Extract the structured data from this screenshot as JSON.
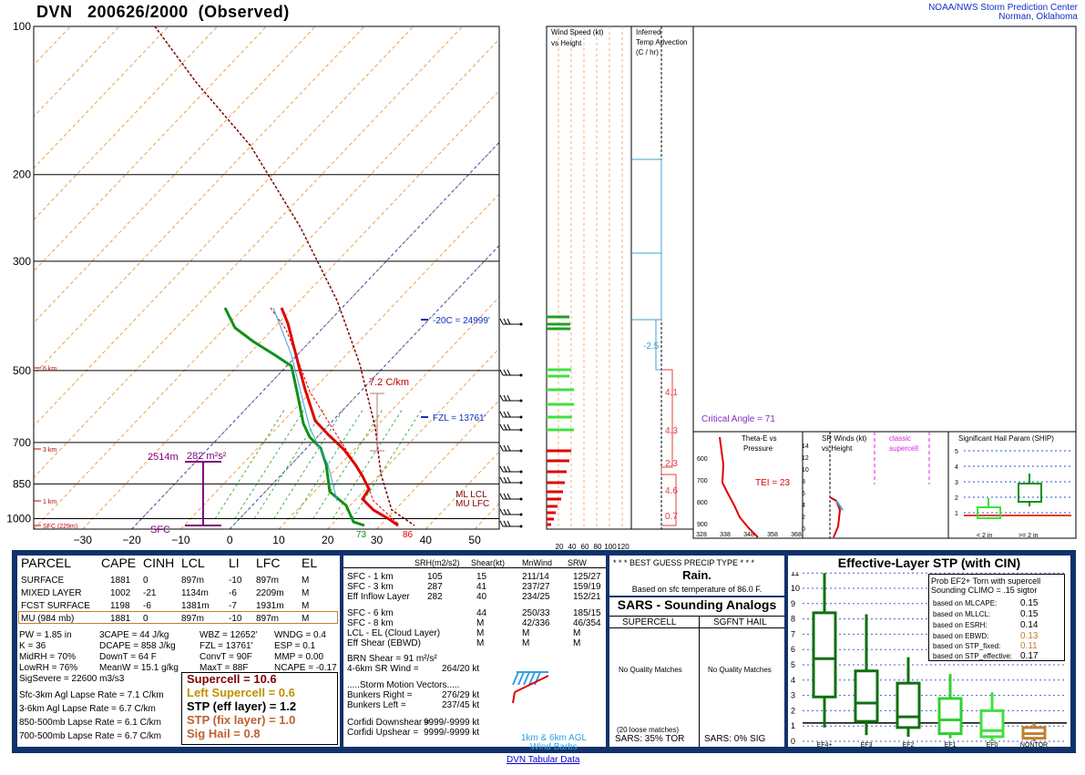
{
  "header": {
    "station": "DVN",
    "time": "200626/2000",
    "kind": "(Observed)",
    "org": "NOAA/NWS Storm Prediction Center",
    "place": "Norman, Oklahoma"
  },
  "skewt": {
    "pressure_ticks": [
      "100",
      "200",
      "300",
      "500",
      "700",
      "850",
      "1000"
    ],
    "temp_ticks": [
      "−30",
      "−20",
      "−10",
      "0",
      "10",
      "20",
      "30",
      "40",
      "50"
    ],
    "height_labels": [
      "6 km",
      "3 km",
      "1 km",
      "SFC (229m)"
    ],
    "annotations": {
      "m20c": "-20C = 24999'",
      "fzl": "FZL = 13761'",
      "lapse": "7.2 C/km",
      "depth": "2514m",
      "srh": "282 m²s²",
      "sfc": "SFC",
      "lcl": "ML LCL",
      "lfc": "MU LFC",
      "tsfc": "86",
      "tdsfc": "73"
    }
  },
  "wspd": {
    "title1": "Wind Speed (kt)",
    "title2": "vs Height",
    "ticks": [
      "20",
      "40",
      "60",
      "80",
      "100",
      "120"
    ]
  },
  "tadv": {
    "title1": "Inferred",
    "title2": "Temp Advection",
    "title3": "(C / hr)",
    "vals": [
      "-2.5",
      "4.1",
      "4.3",
      "2.3",
      "4.6",
      "0.7"
    ]
  },
  "crit": "Critical Angle = 71",
  "theta": {
    "t1": "Theta-E vs",
    "t2": "Pressure",
    "tei": "TEI = 23",
    "yticks": [
      "600",
      "700",
      "800",
      "900"
    ],
    "xticks": [
      "328",
      "338",
      "348",
      "358",
      "368"
    ]
  },
  "srw": {
    "t1": "SR Winds (kt)",
    "t2": "vs Height",
    "t3": "classic",
    "t4": "supercell",
    "yticks": [
      "14",
      "12",
      "10",
      "8",
      "6",
      "4",
      "2",
      "0"
    ]
  },
  "ship": {
    "title": "Significant Hail Param (SHIP)",
    "yticks": [
      "5",
      "4",
      "3",
      "2",
      "1"
    ],
    "x1": "< 2 in",
    "x2": ">= 2 in"
  },
  "parcel": {
    "headers": [
      "PARCEL",
      "CAPE",
      "CINH",
      "LCL",
      "LI",
      "LFC",
      "EL"
    ],
    "rows": [
      [
        "SURFACE",
        "1881",
        "0",
        "897m",
        "-10",
        "897m",
        "M"
      ],
      [
        "MIXED LAYER",
        "1002",
        "-21",
        "1134m",
        "-6",
        "2209m",
        "M"
      ],
      [
        "FCST SURFACE",
        "1198",
        "-6",
        "1381m",
        "-7",
        "1931m",
        "M"
      ],
      [
        "MU   (984 mb)",
        "1881",
        "0",
        "897m",
        "-10",
        "897m",
        "M"
      ]
    ],
    "indices": [
      [
        "PW = 1.85 in",
        "3CAPE = 44 J/kg",
        "WBZ = 12652'",
        "WNDG = 0.4"
      ],
      [
        "K = 36",
        "DCAPE = 858 J/kg",
        "FZL = 13761'",
        "ESP = 0.1"
      ],
      [
        "MidRH = 70%",
        "DownT = 64 F",
        "ConvT = 90F",
        "MMP = 0.00"
      ],
      [
        "LowRH = 76%",
        "MeanW = 15.1 g/kg",
        "MaxT = 88F",
        "NCAPE = -0.17"
      ]
    ],
    "sigsevere": "SigSevere = 22600 m3/s3",
    "lapse": [
      "Sfc-3km Agl Lapse Rate = 7.1 C/km",
      "3-6km Agl Lapse Rate = 6.7 C/km",
      "850-500mb Lapse Rate = 6.1 C/km",
      "700-500mb Lapse Rate = 6.7 C/km"
    ],
    "params": [
      "Supercell = 10.6",
      "Left Supercell = 0.6",
      "STP (eff layer) = 1.2",
      "STP (fix layer) = 1.0",
      "Sig Hail = 0.8"
    ]
  },
  "kin": {
    "headers": [
      "SRH(m2/s2)",
      "Shear(kt)",
      "MnWind",
      "SRW"
    ],
    "rows": [
      [
        "SFC - 1 km",
        "105",
        "15",
        "211/14",
        "125/27"
      ],
      [
        "SFC - 3 km",
        "287",
        "41",
        "237/27",
        "159/19"
      ],
      [
        "Eff Inflow Layer",
        "282",
        "40",
        "234/25",
        "152/21"
      ],
      [
        "SFC - 6 km",
        "44",
        "250/33",
        "185/15"
      ],
      [
        "SFC - 8 km",
        "M",
        "42/336",
        "46/354"
      ],
      [
        "LCL - EL (Cloud Layer)",
        "M",
        "M",
        "M"
      ],
      [
        "Eff Shear (EBWD)",
        "M",
        "M",
        "M"
      ]
    ],
    "brn": "BRN Shear = 91 m²/s²",
    "srwind": "4-6km SR Wind =",
    "srwind_v": "264/20 kt",
    "smv": ".....Storm Motion Vectors.....",
    "br": "Bunkers Right =",
    "br_v": "276/29 kt",
    "bl": "Bunkers Left =",
    "bl_v": "237/45 kt",
    "cd": "Corfidi Downshear =",
    "cd_v": "9999/-9999 kt",
    "cu": "Corfidi Upshear =",
    "cu_v": "9999/-9999 kt",
    "barbs": "1km & 6km AGL Wind Barbs"
  },
  "precip": {
    "t": "* * * BEST GUESS PRECIP TYPE * * *",
    "v": "Rain.",
    "s": "Based on sfc temperature of 86.0 F."
  },
  "sars": {
    "title": "SARS - Sounding Analogs",
    "c1": "SUPERCELL",
    "c2": "SGFNT HAIL",
    "m1": "No Quality Matches",
    "m2": "No Quality Matches",
    "loose": "(20 loose matches)",
    "s1": "SARS:  35% TOR",
    "s2": "SARS:  0% SIG"
  },
  "stp": {
    "title": "Effective-Layer STP (with CIN)",
    "prob": "Prob EF2+ Torn with supercell",
    "clim": "Sounding CLIMO = .15 sigtor",
    "based": [
      [
        "based on MLCAPE:",
        "0.15"
      ],
      [
        "based on MLLCL:",
        "0.15"
      ],
      [
        "based on ESRH:",
        "0.14"
      ],
      [
        "based on EBWD:",
        "0.13"
      ],
      [
        "based on STP_fixed:",
        "0.11"
      ],
      [
        "based on STP_effective:",
        "0.17"
      ]
    ],
    "yticks": [
      "11",
      "10",
      "9",
      "8",
      "7",
      "6",
      "5",
      "4",
      "3",
      "2",
      "1",
      "0"
    ],
    "cats": [
      "EF4+",
      "EF3",
      "EF2",
      "EF1",
      "EF0",
      "NONTOR"
    ]
  },
  "footer": "DVN Tabular Data",
  "colors": {
    "temp": "#e00000",
    "dew": "#10901a",
    "navy": "#10326a",
    "blue": "#1030c0",
    "supercell": "#800000",
    "left": "#c09000",
    "stpfix": "#c06030"
  }
}
